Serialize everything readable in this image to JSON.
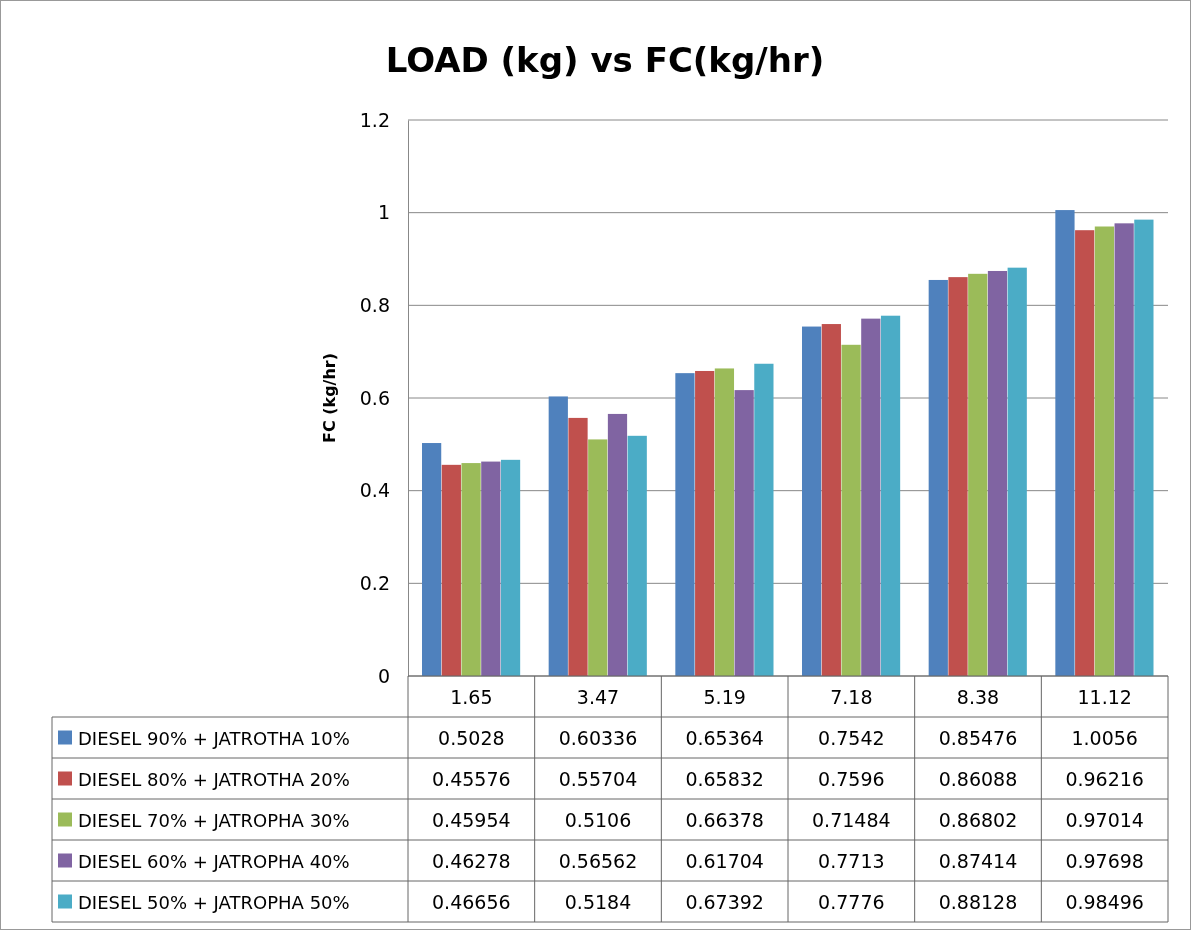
{
  "chart_data": {
    "type": "bar",
    "title": "LOAD (kg) vs FC(kg/hr)",
    "ylabel": "FC (kg/hr)",
    "categories": [
      "1.65",
      "3.47",
      "5.19",
      "7.18",
      "8.38",
      "11.12"
    ],
    "series": [
      {
        "name": "DIESEL 90% + JATROTHA 10%",
        "color": "#4f81bd",
        "values": [
          0.5028,
          0.60336,
          0.65364,
          0.7542,
          0.85476,
          1.0056
        ]
      },
      {
        "name": "DIESEL 80% + JATROTHA 20%",
        "color": "#c0504d",
        "values": [
          0.45576,
          0.55704,
          0.65832,
          0.7596,
          0.86088,
          0.96216
        ]
      },
      {
        "name": "DIESEL 70% + JATROPHA 30%",
        "color": "#9bbb59",
        "values": [
          0.45954,
          0.5106,
          0.66378,
          0.71484,
          0.86802,
          0.97014
        ]
      },
      {
        "name": "DIESEL 60% + JATROPHA 40%",
        "color": "#8064a2",
        "values": [
          0.46278,
          0.56562,
          0.61704,
          0.7713,
          0.87414,
          0.97698
        ]
      },
      {
        "name": "DIESEL 50% + JATROPHA 50%",
        "color": "#4bacc6",
        "values": [
          0.46656,
          0.5184,
          0.67392,
          0.7776,
          0.88128,
          0.98496
        ]
      }
    ],
    "ylim": [
      0,
      1.2
    ],
    "yticks": [
      0,
      0.2,
      0.4,
      0.6,
      0.8,
      1,
      1.2
    ],
    "grid": "y",
    "legend": "bottom",
    "data_labels": true
  }
}
